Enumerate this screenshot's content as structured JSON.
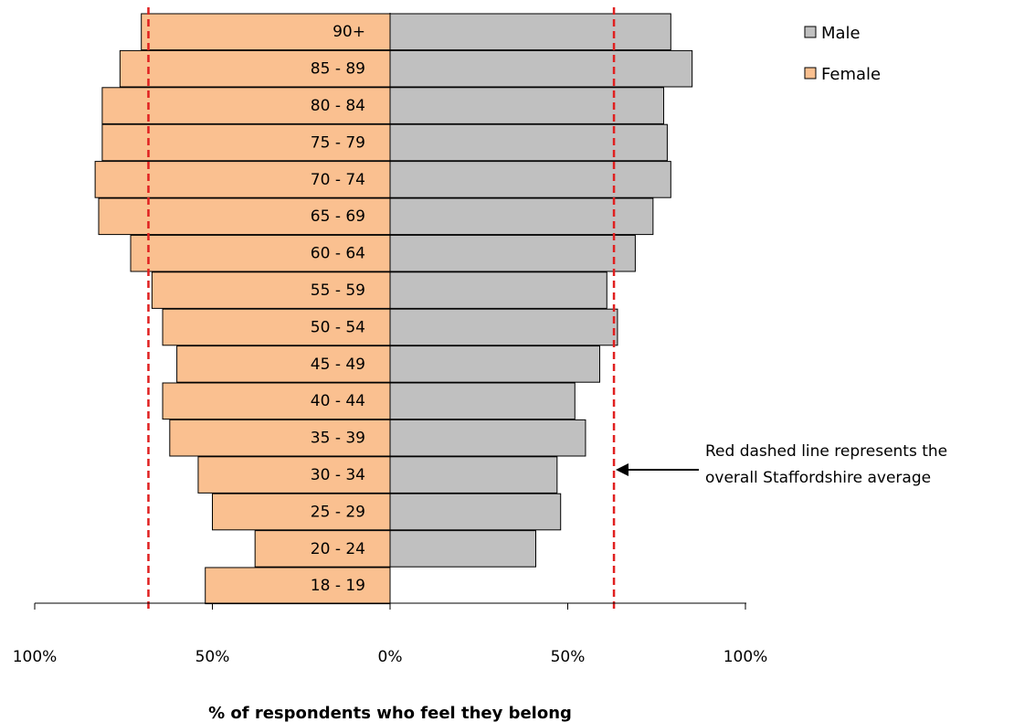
{
  "chart_data": {
    "type": "bar",
    "orientation": "horizontal-pyramid",
    "categories": [
      "18 - 19",
      "20 - 24",
      "25 - 29",
      "30 - 34",
      "35 - 39",
      "40 - 44",
      "45 - 49",
      "50 - 54",
      "55 - 59",
      "60 - 64",
      "65 - 69",
      "70 - 74",
      "75 - 79",
      "80 - 84",
      "85 - 89",
      "90+"
    ],
    "series": [
      {
        "name": "Male",
        "color": "#c0c0c0",
        "values": [
          0,
          41,
          48,
          47,
          55,
          52,
          59,
          64,
          61,
          69,
          74,
          79,
          78,
          77,
          85,
          79
        ]
      },
      {
        "name": "Female",
        "color": "#fac090",
        "values": [
          52,
          38,
          50,
          54,
          62,
          64,
          60,
          64,
          67,
          73,
          82,
          83,
          81,
          81,
          76,
          70
        ]
      }
    ],
    "reference_lines": [
      {
        "series": "Female",
        "value": 68,
        "style": "dashed",
        "color": "#e02020"
      },
      {
        "series": "Male",
        "value": 63,
        "style": "dashed",
        "color": "#e02020"
      }
    ],
    "x_ticks": [
      "100%",
      "50%",
      "0%",
      "50%",
      "100%"
    ],
    "xlim": [
      -100,
      100
    ],
    "xlabel": "% of respondents who feel they belong",
    "legend_position": "top-right",
    "annotation": {
      "lines": [
        "Red dashed line represents the",
        "overall Staffordshire average"
      ],
      "points_to": "Male reference line"
    },
    "grid": false
  }
}
